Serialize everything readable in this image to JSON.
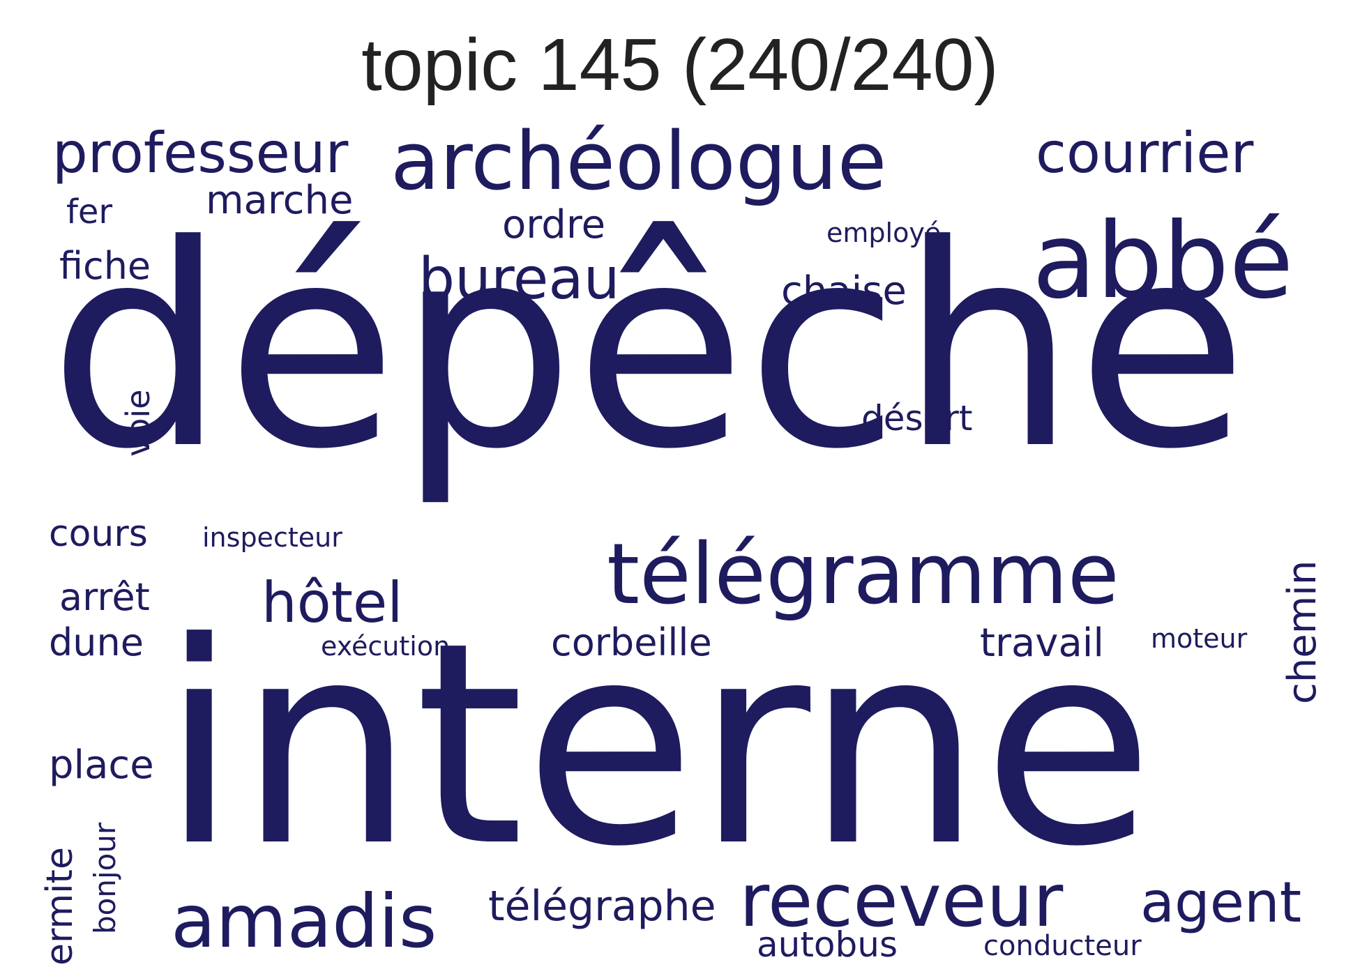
{
  "title": "topic 145 (240/240)",
  "word_color": "#1e1b5e",
  "words": [
    "dépêche",
    "interne",
    "archéologue",
    "abbé",
    "télégramme",
    "receveur",
    "professeur",
    "courrier",
    "amadis",
    "bureau",
    "agent",
    "hôtel",
    "télégraphe",
    "marche",
    "ordre",
    "chaise",
    "travail",
    "corbeille",
    "place",
    "fiche",
    "arrêt",
    "dune",
    "cours",
    "fer",
    "désert",
    "chemin",
    "autobus",
    "voie",
    "ermite",
    "bonjour",
    "employé",
    "inspecteur",
    "exécution",
    "moteur",
    "conducteur"
  ]
}
